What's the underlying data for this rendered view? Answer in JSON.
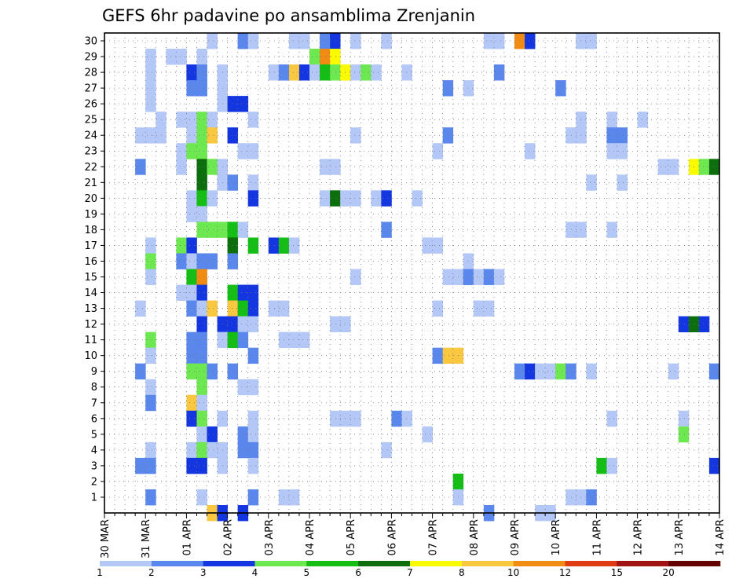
{
  "chart_data": {
    "type": "heatmap",
    "title": "GEFS 6hr padavine po ansamblima Zrenjanin",
    "x_tick_labels": [
      "30 MAR",
      "31 MAR",
      "01 APR",
      "02 APR",
      "03 APR",
      "04 APR",
      "05 APR",
      "06 APR",
      "07 APR",
      "08 APR",
      "09 APR",
      "10 APR",
      "11 APR",
      "12 APR",
      "13 APR",
      "14 APR"
    ],
    "y_tick_labels": [
      "1",
      "2",
      "3",
      "4",
      "5",
      "6",
      "7",
      "8",
      "9",
      "10",
      "11",
      "12",
      "13",
      "14",
      "15",
      "16",
      "17",
      "18",
      "19",
      "20",
      "21",
      "22",
      "23",
      "24",
      "25",
      "26",
      "27",
      "28",
      "29",
      "30"
    ],
    "x_unit": "6-hour step from 30 MAR 00z",
    "y_range": [
      0,
      30
    ],
    "grid": "dotted",
    "colorbar": {
      "boundaries": [
        "1",
        "2",
        "3",
        "4",
        "5",
        "6",
        "7",
        "8",
        "10",
        "12",
        "15",
        "20"
      ],
      "colors": [
        "#b4c8f8",
        "#5a87ec",
        "#1436e0",
        "#6ee850",
        "#14be14",
        "#0c6e0c",
        "#fafa00",
        "#fac840",
        "#f08c14",
        "#e03c14",
        "#a01414",
        "#640000"
      ]
    },
    "levels": [
      {
        "range": "1-2",
        "color": "#b4c8f8"
      },
      {
        "range": "2-3",
        "color": "#5a87ec"
      },
      {
        "range": "3-4",
        "color": "#1436e0"
      },
      {
        "range": "4-5",
        "color": "#6ee850"
      },
      {
        "range": "5-6",
        "color": "#14be14"
      },
      {
        "range": "6-7",
        "color": "#0c6e0c"
      },
      {
        "range": "7-8",
        "color": "#fafa00"
      },
      {
        "range": "8-10",
        "color": "#fac840"
      },
      {
        "range": "10-12",
        "color": "#f08c14"
      }
    ],
    "cells": [
      [
        10,
        30,
        "#b4c8f8"
      ],
      [
        13,
        30,
        "#5a87ec"
      ],
      [
        14,
        30,
        "#b4c8f8"
      ],
      [
        18,
        30,
        "#b4c8f8"
      ],
      [
        19,
        30,
        "#b4c8f8"
      ],
      [
        21,
        30,
        "#5a87ec"
      ],
      [
        22,
        30,
        "#1436e0"
      ],
      [
        24,
        30,
        "#b4c8f8"
      ],
      [
        27,
        30,
        "#b4c8f8"
      ],
      [
        37,
        30,
        "#b4c8f8"
      ],
      [
        38,
        30,
        "#b4c8f8"
      ],
      [
        40,
        30,
        "#f08c14"
      ],
      [
        41,
        30,
        "#1436e0"
      ],
      [
        46,
        30,
        "#b4c8f8"
      ],
      [
        47,
        30,
        "#b4c8f8"
      ],
      [
        4,
        29,
        "#b4c8f8"
      ],
      [
        6,
        29,
        "#b4c8f8"
      ],
      [
        7,
        29,
        "#b4c8f8"
      ],
      [
        9,
        29,
        "#b4c8f8"
      ],
      [
        20,
        29,
        "#6ee850"
      ],
      [
        21,
        29,
        "#f08c14"
      ],
      [
        22,
        29,
        "#fafa00"
      ],
      [
        4,
        28,
        "#b4c8f8"
      ],
      [
        8,
        28,
        "#1436e0"
      ],
      [
        9,
        28,
        "#5a87ec"
      ],
      [
        11,
        28,
        "#b4c8f8"
      ],
      [
        16,
        28,
        "#b4c8f8"
      ],
      [
        17,
        28,
        "#5a87ec"
      ],
      [
        18,
        28,
        "#fac840"
      ],
      [
        19,
        28,
        "#1436e0"
      ],
      [
        20,
        28,
        "#b4c8f8"
      ],
      [
        21,
        28,
        "#14be14"
      ],
      [
        22,
        28,
        "#6ee850"
      ],
      [
        23,
        28,
        "#fafa00"
      ],
      [
        24,
        28,
        "#b4c8f8"
      ],
      [
        25,
        28,
        "#6ee850"
      ],
      [
        26,
        28,
        "#b4c8f8"
      ],
      [
        29,
        28,
        "#b4c8f8"
      ],
      [
        38,
        28,
        "#5a87ec"
      ],
      [
        4,
        27,
        "#b4c8f8"
      ],
      [
        8,
        27,
        "#5a87ec"
      ],
      [
        9,
        27,
        "#5a87ec"
      ],
      [
        11,
        27,
        "#b4c8f8"
      ],
      [
        33,
        27,
        "#5a87ec"
      ],
      [
        35,
        27,
        "#b4c8f8"
      ],
      [
        44,
        27,
        "#5a87ec"
      ],
      [
        4,
        26,
        "#b4c8f8"
      ],
      [
        11,
        26,
        "#b4c8f8"
      ],
      [
        12,
        26,
        "#1436e0"
      ],
      [
        13,
        26,
        "#1436e0"
      ],
      [
        5,
        25,
        "#b4c8f8"
      ],
      [
        7,
        25,
        "#b4c8f8"
      ],
      [
        8,
        25,
        "#b4c8f8"
      ],
      [
        9,
        25,
        "#6ee850"
      ],
      [
        10,
        25,
        "#b4c8f8"
      ],
      [
        14,
        25,
        "#b4c8f8"
      ],
      [
        46,
        25,
        "#b4c8f8"
      ],
      [
        49,
        25,
        "#b4c8f8"
      ],
      [
        52,
        25,
        "#b4c8f8"
      ],
      [
        3,
        24,
        "#b4c8f8"
      ],
      [
        4,
        24,
        "#b4c8f8"
      ],
      [
        5,
        24,
        "#b4c8f8"
      ],
      [
        8,
        24,
        "#b4c8f8"
      ],
      [
        9,
        24,
        "#6ee850"
      ],
      [
        10,
        24,
        "#fac840"
      ],
      [
        12,
        24,
        "#1436e0"
      ],
      [
        24,
        24,
        "#b4c8f8"
      ],
      [
        33,
        24,
        "#5a87ec"
      ],
      [
        45,
        24,
        "#b4c8f8"
      ],
      [
        46,
        24,
        "#b4c8f8"
      ],
      [
        49,
        24,
        "#5a87ec"
      ],
      [
        50,
        24,
        "#5a87ec"
      ],
      [
        7,
        23,
        "#b4c8f8"
      ],
      [
        8,
        23,
        "#6ee850"
      ],
      [
        9,
        23,
        "#6ee850"
      ],
      [
        13,
        23,
        "#b4c8f8"
      ],
      [
        14,
        23,
        "#b4c8f8"
      ],
      [
        32,
        23,
        "#b4c8f8"
      ],
      [
        41,
        23,
        "#b4c8f8"
      ],
      [
        49,
        23,
        "#b4c8f8"
      ],
      [
        50,
        23,
        "#b4c8f8"
      ],
      [
        3,
        22,
        "#5a87ec"
      ],
      [
        7,
        22,
        "#b4c8f8"
      ],
      [
        9,
        22,
        "#0c6e0c"
      ],
      [
        10,
        22,
        "#6ee850"
      ],
      [
        11,
        22,
        "#b4c8f8"
      ],
      [
        21,
        22,
        "#b4c8f8"
      ],
      [
        22,
        22,
        "#b4c8f8"
      ],
      [
        54,
        22,
        "#b4c8f8"
      ],
      [
        55,
        22,
        "#b4c8f8"
      ],
      [
        57,
        22,
        "#fafa00"
      ],
      [
        58,
        22,
        "#6ee850"
      ],
      [
        59,
        22,
        "#0c6e0c"
      ],
      [
        9,
        21,
        "#0c6e0c"
      ],
      [
        11,
        21,
        "#b4c8f8"
      ],
      [
        12,
        21,
        "#5a87ec"
      ],
      [
        14,
        21,
        "#b4c8f8"
      ],
      [
        47,
        21,
        "#b4c8f8"
      ],
      [
        50,
        21,
        "#b4c8f8"
      ],
      [
        8,
        20,
        "#b4c8f8"
      ],
      [
        9,
        20,
        "#14be14"
      ],
      [
        10,
        20,
        "#b4c8f8"
      ],
      [
        14,
        20,
        "#1436e0"
      ],
      [
        21,
        20,
        "#b4c8f8"
      ],
      [
        22,
        20,
        "#0c6e0c"
      ],
      [
        23,
        20,
        "#b4c8f8"
      ],
      [
        24,
        20,
        "#b4c8f8"
      ],
      [
        26,
        20,
        "#b4c8f8"
      ],
      [
        27,
        20,
        "#1436e0"
      ],
      [
        30,
        20,
        "#b4c8f8"
      ],
      [
        8,
        19,
        "#b4c8f8"
      ],
      [
        9,
        19,
        "#b4c8f8"
      ],
      [
        9,
        18,
        "#6ee850"
      ],
      [
        10,
        18,
        "#6ee850"
      ],
      [
        11,
        18,
        "#6ee850"
      ],
      [
        12,
        18,
        "#14be14"
      ],
      [
        13,
        18,
        "#b4c8f8"
      ],
      [
        27,
        18,
        "#5a87ec"
      ],
      [
        45,
        18,
        "#b4c8f8"
      ],
      [
        46,
        18,
        "#b4c8f8"
      ],
      [
        49,
        18,
        "#b4c8f8"
      ],
      [
        4,
        17,
        "#b4c8f8"
      ],
      [
        7,
        17,
        "#6ee850"
      ],
      [
        8,
        17,
        "#1436e0"
      ],
      [
        12,
        17,
        "#0c6e0c"
      ],
      [
        14,
        17,
        "#14be14"
      ],
      [
        16,
        17,
        "#1436e0"
      ],
      [
        17,
        17,
        "#14be14"
      ],
      [
        18,
        17,
        "#b4c8f8"
      ],
      [
        31,
        17,
        "#b4c8f8"
      ],
      [
        32,
        17,
        "#b4c8f8"
      ],
      [
        4,
        16,
        "#6ee850"
      ],
      [
        7,
        16,
        "#5a87ec"
      ],
      [
        8,
        16,
        "#b4c8f8"
      ],
      [
        9,
        16,
        "#5a87ec"
      ],
      [
        10,
        16,
        "#5a87ec"
      ],
      [
        12,
        16,
        "#5a87ec"
      ],
      [
        35,
        16,
        "#b4c8f8"
      ],
      [
        4,
        15,
        "#b4c8f8"
      ],
      [
        8,
        15,
        "#14be14"
      ],
      [
        9,
        15,
        "#f08c14"
      ],
      [
        24,
        15,
        "#b4c8f8"
      ],
      [
        33,
        15,
        "#b4c8f8"
      ],
      [
        34,
        15,
        "#b4c8f8"
      ],
      [
        35,
        15,
        "#5a87ec"
      ],
      [
        36,
        15,
        "#b4c8f8"
      ],
      [
        37,
        15,
        "#5a87ec"
      ],
      [
        38,
        15,
        "#b4c8f8"
      ],
      [
        7,
        14,
        "#b4c8f8"
      ],
      [
        8,
        14,
        "#b4c8f8"
      ],
      [
        9,
        14,
        "#1436e0"
      ],
      [
        12,
        14,
        "#14be14"
      ],
      [
        13,
        14,
        "#1436e0"
      ],
      [
        14,
        14,
        "#1436e0"
      ],
      [
        3,
        13,
        "#b4c8f8"
      ],
      [
        8,
        13,
        "#5a87ec"
      ],
      [
        9,
        13,
        "#b4c8f8"
      ],
      [
        10,
        13,
        "#fac840"
      ],
      [
        12,
        13,
        "#fac840"
      ],
      [
        13,
        13,
        "#14be14"
      ],
      [
        14,
        13,
        "#1436e0"
      ],
      [
        16,
        13,
        "#b4c8f8"
      ],
      [
        17,
        13,
        "#b4c8f8"
      ],
      [
        32,
        13,
        "#b4c8f8"
      ],
      [
        36,
        13,
        "#b4c8f8"
      ],
      [
        37,
        13,
        "#b4c8f8"
      ],
      [
        9,
        12,
        "#1436e0"
      ],
      [
        11,
        12,
        "#1436e0"
      ],
      [
        12,
        12,
        "#1436e0"
      ],
      [
        13,
        12,
        "#b4c8f8"
      ],
      [
        14,
        12,
        "#b4c8f8"
      ],
      [
        22,
        12,
        "#b4c8f8"
      ],
      [
        23,
        12,
        "#b4c8f8"
      ],
      [
        56,
        12,
        "#1436e0"
      ],
      [
        57,
        12,
        "#0c6e0c"
      ],
      [
        58,
        12,
        "#1436e0"
      ],
      [
        4,
        11,
        "#6ee850"
      ],
      [
        8,
        11,
        "#5a87ec"
      ],
      [
        9,
        11,
        "#5a87ec"
      ],
      [
        11,
        11,
        "#b4c8f8"
      ],
      [
        12,
        11,
        "#14be14"
      ],
      [
        13,
        11,
        "#5a87ec"
      ],
      [
        17,
        11,
        "#b4c8f8"
      ],
      [
        18,
        11,
        "#b4c8f8"
      ],
      [
        19,
        11,
        "#b4c8f8"
      ],
      [
        4,
        10,
        "#b4c8f8"
      ],
      [
        8,
        10,
        "#5a87ec"
      ],
      [
        9,
        10,
        "#5a87ec"
      ],
      [
        14,
        10,
        "#5a87ec"
      ],
      [
        32,
        10,
        "#5a87ec"
      ],
      [
        33,
        10,
        "#fac840"
      ],
      [
        34,
        10,
        "#fac840"
      ],
      [
        3,
        9,
        "#5a87ec"
      ],
      [
        8,
        9,
        "#6ee850"
      ],
      [
        9,
        9,
        "#6ee850"
      ],
      [
        10,
        9,
        "#5a87ec"
      ],
      [
        12,
        9,
        "#5a87ec"
      ],
      [
        40,
        9,
        "#5a87ec"
      ],
      [
        41,
        9,
        "#1436e0"
      ],
      [
        42,
        9,
        "#b4c8f8"
      ],
      [
        43,
        9,
        "#b4c8f8"
      ],
      [
        44,
        9,
        "#6ee850"
      ],
      [
        45,
        9,
        "#5a87ec"
      ],
      [
        47,
        9,
        "#b4c8f8"
      ],
      [
        55,
        9,
        "#b4c8f8"
      ],
      [
        59,
        9,
        "#5a87ec"
      ],
      [
        4,
        8,
        "#b4c8f8"
      ],
      [
        9,
        8,
        "#6ee850"
      ],
      [
        13,
        8,
        "#b4c8f8"
      ],
      [
        14,
        8,
        "#b4c8f8"
      ],
      [
        4,
        7,
        "#5a87ec"
      ],
      [
        8,
        7,
        "#fac840"
      ],
      [
        9,
        7,
        "#b4c8f8"
      ],
      [
        8,
        6,
        "#1436e0"
      ],
      [
        9,
        6,
        "#6ee850"
      ],
      [
        11,
        6,
        "#b4c8f8"
      ],
      [
        14,
        6,
        "#b4c8f8"
      ],
      [
        22,
        6,
        "#b4c8f8"
      ],
      [
        23,
        6,
        "#b4c8f8"
      ],
      [
        24,
        6,
        "#b4c8f8"
      ],
      [
        28,
        6,
        "#5a87ec"
      ],
      [
        29,
        6,
        "#b4c8f8"
      ],
      [
        49,
        6,
        "#b4c8f8"
      ],
      [
        56,
        6,
        "#b4c8f8"
      ],
      [
        9,
        5,
        "#b4c8f8"
      ],
      [
        10,
        5,
        "#1436e0"
      ],
      [
        13,
        5,
        "#5a87ec"
      ],
      [
        14,
        5,
        "#b4c8f8"
      ],
      [
        31,
        5,
        "#b4c8f8"
      ],
      [
        56,
        5,
        "#6ee850"
      ],
      [
        4,
        4,
        "#b4c8f8"
      ],
      [
        8,
        4,
        "#b4c8f8"
      ],
      [
        9,
        4,
        "#6ee850"
      ],
      [
        10,
        4,
        "#b4c8f8"
      ],
      [
        11,
        4,
        "#b4c8f8"
      ],
      [
        13,
        4,
        "#5a87ec"
      ],
      [
        14,
        4,
        "#5a87ec"
      ],
      [
        27,
        4,
        "#b4c8f8"
      ],
      [
        3,
        3,
        "#5a87ec"
      ],
      [
        4,
        3,
        "#5a87ec"
      ],
      [
        8,
        3,
        "#1436e0"
      ],
      [
        9,
        3,
        "#1436e0"
      ],
      [
        11,
        3,
        "#b4c8f8"
      ],
      [
        14,
        3,
        "#b4c8f8"
      ],
      [
        48,
        3,
        "#14be14"
      ],
      [
        49,
        3,
        "#b4c8f8"
      ],
      [
        59,
        3,
        "#1436e0"
      ],
      [
        34,
        2,
        "#14be14"
      ],
      [
        4,
        1,
        "#5a87ec"
      ],
      [
        9,
        1,
        "#b4c8f8"
      ],
      [
        14,
        1,
        "#5a87ec"
      ],
      [
        17,
        1,
        "#b4c8f8"
      ],
      [
        18,
        1,
        "#b4c8f8"
      ],
      [
        34,
        1,
        "#b4c8f8"
      ],
      [
        45,
        1,
        "#b4c8f8"
      ],
      [
        46,
        1,
        "#b4c8f8"
      ],
      [
        47,
        1,
        "#5a87ec"
      ],
      [
        10,
        0,
        "#fac840"
      ],
      [
        11,
        0,
        "#1436e0"
      ],
      [
        13,
        0,
        "#1436e0"
      ],
      [
        37,
        0,
        "#5a87ec"
      ],
      [
        42,
        0,
        "#b4c8f8"
      ],
      [
        43,
        0,
        "#b4c8f8"
      ]
    ]
  }
}
